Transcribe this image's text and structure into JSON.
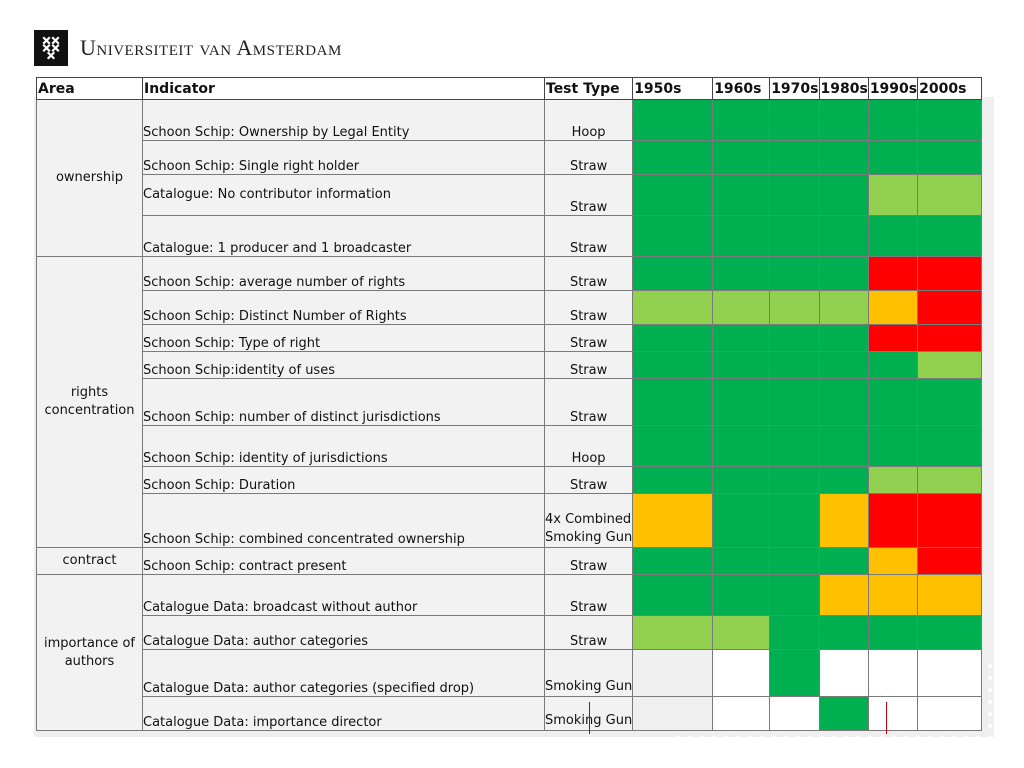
{
  "brand": {
    "name": "Universiteit van Amsterdam"
  },
  "colors": {
    "green": "#00b050",
    "light_green": "#92d050",
    "amber": "#ffc000",
    "red": "#ff0000",
    "empty": "#efefef",
    "white": "#ffffff"
  },
  "table": {
    "headers": {
      "area": "Area",
      "indicator": "Indicator",
      "test_type": "Test Type",
      "decades": [
        "1950s",
        "1960s",
        "1970s",
        "1980s",
        "1990s",
        "2000s"
      ]
    },
    "areas": [
      "ownership",
      "rights concentration",
      "contract",
      "importance of authors"
    ],
    "rows": [
      {
        "indicator": "Schoon Schip: Ownership by Legal Entity",
        "test": "Hoop",
        "cells": [
          "green",
          "green",
          "green",
          "green",
          "green",
          "green"
        ]
      },
      {
        "indicator": "Schoon Schip: Single right holder",
        "test": "Straw",
        "cells": [
          "green",
          "green",
          "green",
          "green",
          "green",
          "green"
        ]
      },
      {
        "indicator": "Catalogue: No contributor information",
        "test": "Straw",
        "cells": [
          "green",
          "green",
          "green",
          "green",
          "light_green",
          "light_green"
        ]
      },
      {
        "indicator": "Catalogue: 1 producer and 1 broadcaster",
        "test": "Straw",
        "cells": [
          "green",
          "green",
          "green",
          "green",
          "green",
          "green"
        ]
      },
      {
        "indicator": "Schoon Schip: average number of rights",
        "test": "Straw",
        "cells": [
          "green",
          "green",
          "green",
          "green",
          "red",
          "red"
        ]
      },
      {
        "indicator": "Schoon Schip: Distinct Number of Rights",
        "test": "Straw",
        "cells": [
          "light_green",
          "light_green",
          "light_green",
          "light_green",
          "amber",
          "red"
        ]
      },
      {
        "indicator": "Schoon Schip: Type of right",
        "test": "Straw",
        "cells": [
          "green",
          "green",
          "green",
          "green",
          "red",
          "red"
        ]
      },
      {
        "indicator": "Schoon Schip:identity of uses",
        "test": "Straw",
        "cells": [
          "green",
          "green",
          "green",
          "green",
          "green",
          "light_green"
        ]
      },
      {
        "indicator": "Schoon Schip: number of distinct jurisdictions",
        "test": "Straw",
        "cells": [
          "green",
          "green",
          "green",
          "green",
          "green",
          "green"
        ]
      },
      {
        "indicator": "Schoon Schip: identity of jurisdictions",
        "test": "Hoop",
        "cells": [
          "green",
          "green",
          "green",
          "green",
          "green",
          "green"
        ]
      },
      {
        "indicator": "Schoon Schip: Duration",
        "test": "Straw",
        "cells": [
          "green",
          "green",
          "green",
          "green",
          "light_green",
          "light_green"
        ]
      },
      {
        "indicator": "Schoon Schip: combined concentrated ownership",
        "test_line1": "4x Combined",
        "test_line2": "Smoking Gun",
        "cells": [
          "amber",
          "green",
          "green",
          "amber",
          "red",
          "red"
        ]
      },
      {
        "indicator": "Schoon Schip: contract present",
        "test": "Straw",
        "cells": [
          "green",
          "green",
          "green",
          "green",
          "amber",
          "red"
        ]
      },
      {
        "indicator": "Catalogue Data: broadcast without author",
        "test": "Straw",
        "cells": [
          "green",
          "green",
          "green",
          "amber",
          "amber",
          "amber"
        ]
      },
      {
        "indicator": "Catalogue Data: author categories",
        "test": "Straw",
        "cells": [
          "light_green",
          "light_green",
          "green",
          "green",
          "green",
          "green"
        ]
      },
      {
        "indicator": "Catalogue Data: author categories (specified drop)",
        "test": "Smoking Gun",
        "cells": [
          "empty",
          "white",
          "green",
          "white",
          "white",
          "white"
        ]
      },
      {
        "indicator": "Catalogue Data: importance director",
        "test": "Smoking Gun",
        "cells": [
          "empty",
          "white",
          "white",
          "green",
          "white",
          "white"
        ]
      }
    ]
  }
}
